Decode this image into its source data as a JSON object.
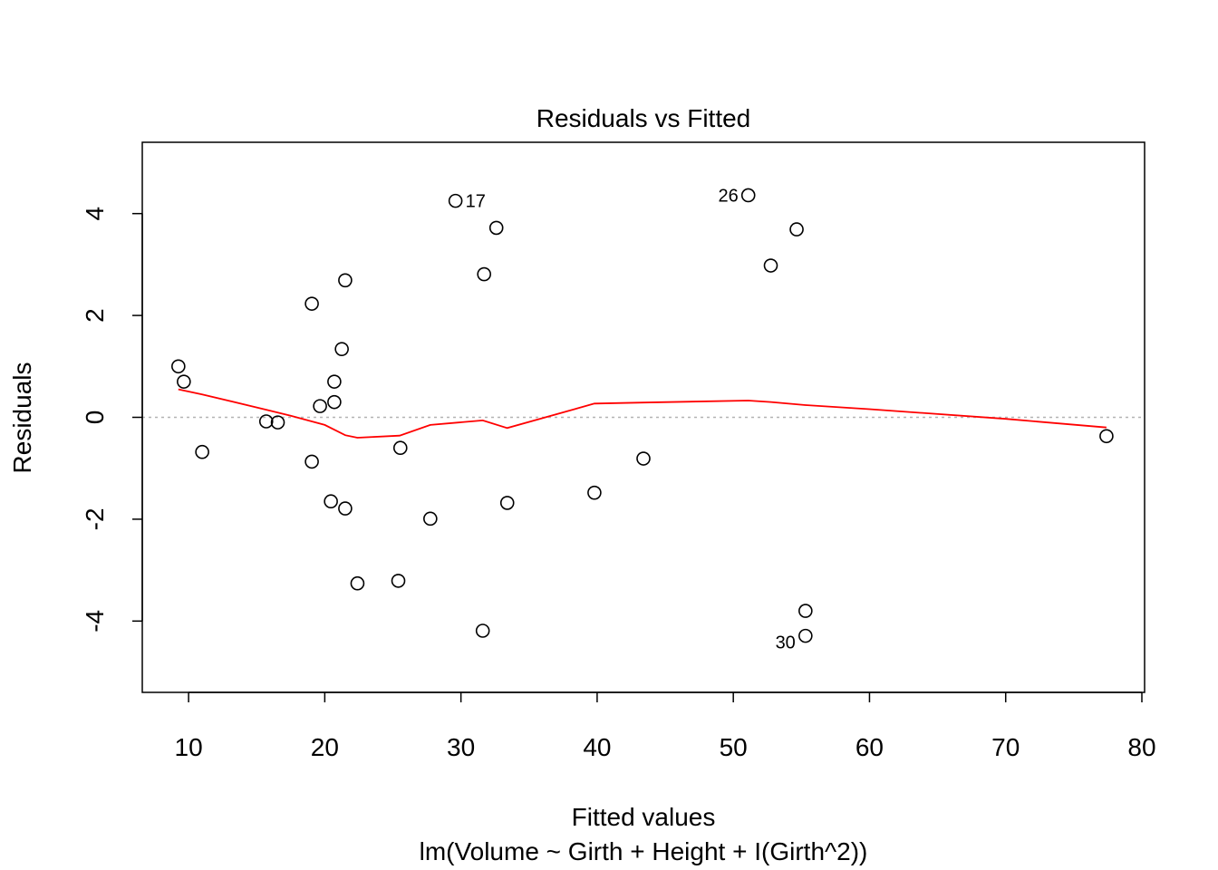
{
  "chart_data": {
    "type": "scatter",
    "title": "Residuals vs Fitted",
    "xlabel": "Fitted values",
    "subtitle": "lm(Volume ~ Girth + Height + I(Girth^2))",
    "ylabel": "Residuals",
    "xlim": [
      6.6,
      80.2
    ],
    "ylim": [
      -5.4,
      5.4
    ],
    "x_ticks": [
      10,
      20,
      30,
      40,
      50,
      60,
      70,
      80
    ],
    "y_ticks": [
      -4,
      -2,
      0,
      2,
      4
    ],
    "x_tick_labels": [
      "10",
      "20",
      "30",
      "40",
      "50",
      "60",
      "70",
      "80"
    ],
    "y_tick_labels": [
      "-4",
      "-2",
      "0",
      "2",
      "4"
    ],
    "grid": false,
    "reference_line": {
      "y": 0,
      "style": "dotted",
      "color": "#b3b3b3"
    },
    "points": [
      {
        "x": 9.25,
        "y": 1.0
      },
      {
        "x": 9.65,
        "y": 0.7
      },
      {
        "x": 11.0,
        "y": -0.68
      },
      {
        "x": 15.7,
        "y": -0.08
      },
      {
        "x": 16.55,
        "y": -0.1
      },
      {
        "x": 19.05,
        "y": 2.23
      },
      {
        "x": 19.05,
        "y": -0.87
      },
      {
        "x": 19.65,
        "y": 0.22
      },
      {
        "x": 20.45,
        "y": -1.65
      },
      {
        "x": 20.7,
        "y": 0.7
      },
      {
        "x": 20.7,
        "y": 0.3
      },
      {
        "x": 21.25,
        "y": 1.34
      },
      {
        "x": 21.5,
        "y": 2.69
      },
      {
        "x": 21.5,
        "y": -1.79
      },
      {
        "x": 22.4,
        "y": -3.26
      },
      {
        "x": 25.4,
        "y": -3.21
      },
      {
        "x": 25.55,
        "y": -0.6
      },
      {
        "x": 27.75,
        "y": -1.99
      },
      {
        "x": 29.6,
        "y": 4.25,
        "label": "17"
      },
      {
        "x": 31.6,
        "y": -4.19
      },
      {
        "x": 31.7,
        "y": 2.81
      },
      {
        "x": 32.6,
        "y": 3.72
      },
      {
        "x": 33.4,
        "y": -1.68
      },
      {
        "x": 39.8,
        "y": -1.48
      },
      {
        "x": 43.4,
        "y": -0.81
      },
      {
        "x": 51.1,
        "y": 4.36,
        "label": "26"
      },
      {
        "x": 52.75,
        "y": 2.98
      },
      {
        "x": 54.65,
        "y": 3.69
      },
      {
        "x": 55.3,
        "y": -3.8
      },
      {
        "x": 55.3,
        "y": -4.29,
        "label": "30"
      },
      {
        "x": 77.4,
        "y": -0.37
      }
    ],
    "smooth_line": {
      "color": "#ff0000",
      "x": [
        9.25,
        11.0,
        15.7,
        17.5,
        20.0,
        21.5,
        22.4,
        25.5,
        27.75,
        31.6,
        33.4,
        39.8,
        43.4,
        51.1,
        52.75,
        55.3,
        60.0,
        70.0,
        77.4
      ],
      "y": [
        0.55,
        0.45,
        0.15,
        0.03,
        -0.15,
        -0.35,
        -0.4,
        -0.36,
        -0.15,
        -0.06,
        -0.21,
        0.27,
        0.29,
        0.33,
        0.3,
        0.24,
        0.16,
        -0.03,
        -0.2
      ]
    }
  }
}
